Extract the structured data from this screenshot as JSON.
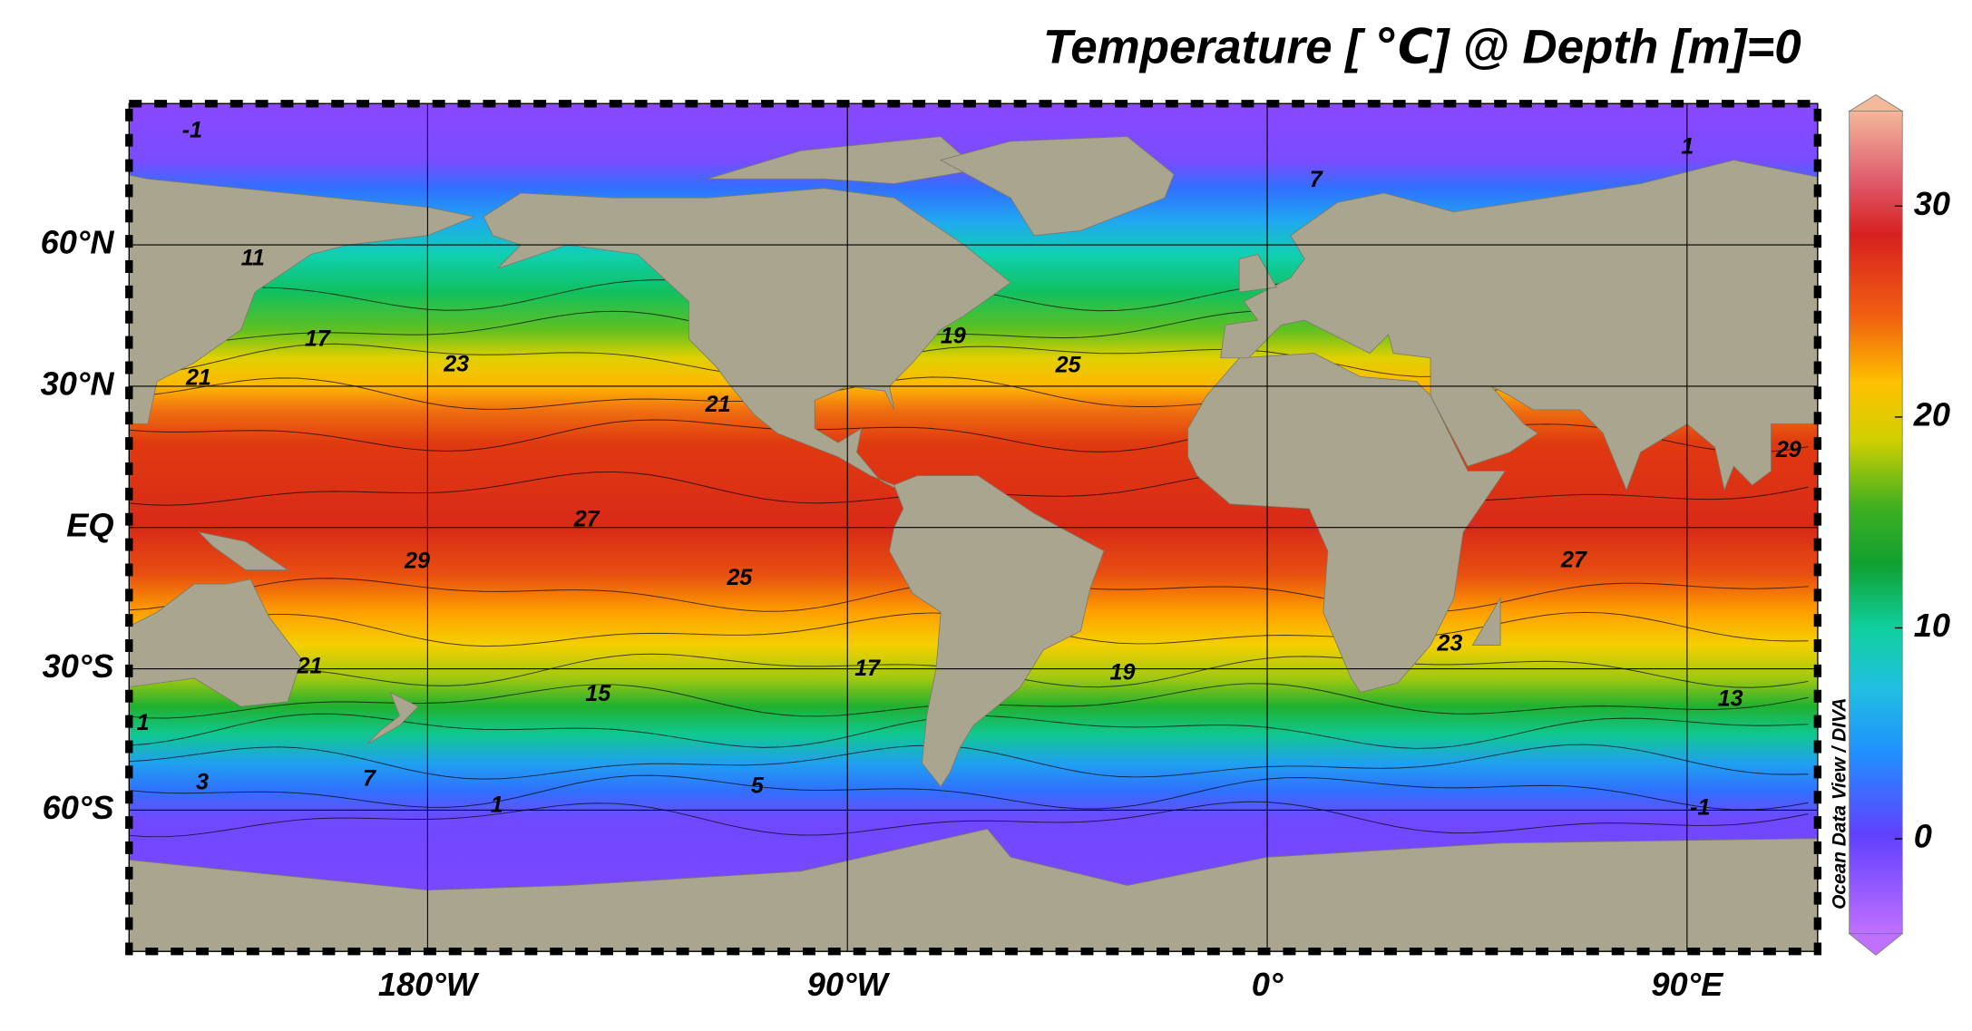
{
  "title": "Temperature [ ℃] @ Depth [m]=0",
  "credit": "Ocean Data View / DIVA",
  "map": {
    "lon_range": [
      -244,
      118
    ],
    "lat_range": [
      -90,
      90
    ],
    "lat_ticks": [
      {
        "value": 60,
        "label": "60°N"
      },
      {
        "value": 30,
        "label": "30°N"
      },
      {
        "value": 0,
        "label": "EQ"
      },
      {
        "value": -30,
        "label": "30°S"
      },
      {
        "value": -60,
        "label": "60°S"
      }
    ],
    "lon_ticks": [
      {
        "value": -180,
        "label": "180°W"
      },
      {
        "value": -90,
        "label": "90°W"
      },
      {
        "value": 0,
        "label": "0°"
      },
      {
        "value": 90,
        "label": "90°E"
      }
    ],
    "contour_labels": [
      -1,
      7,
      11,
      17,
      23,
      21,
      21,
      19,
      25,
      27,
      29,
      25,
      27,
      29,
      23,
      17,
      19,
      15,
      13,
      21,
      1,
      3,
      7,
      5,
      1,
      -1,
      1
    ]
  },
  "colorbar": {
    "range": [
      -4.5,
      34.5
    ],
    "ticks": [
      0,
      10,
      20,
      30
    ]
  }
}
